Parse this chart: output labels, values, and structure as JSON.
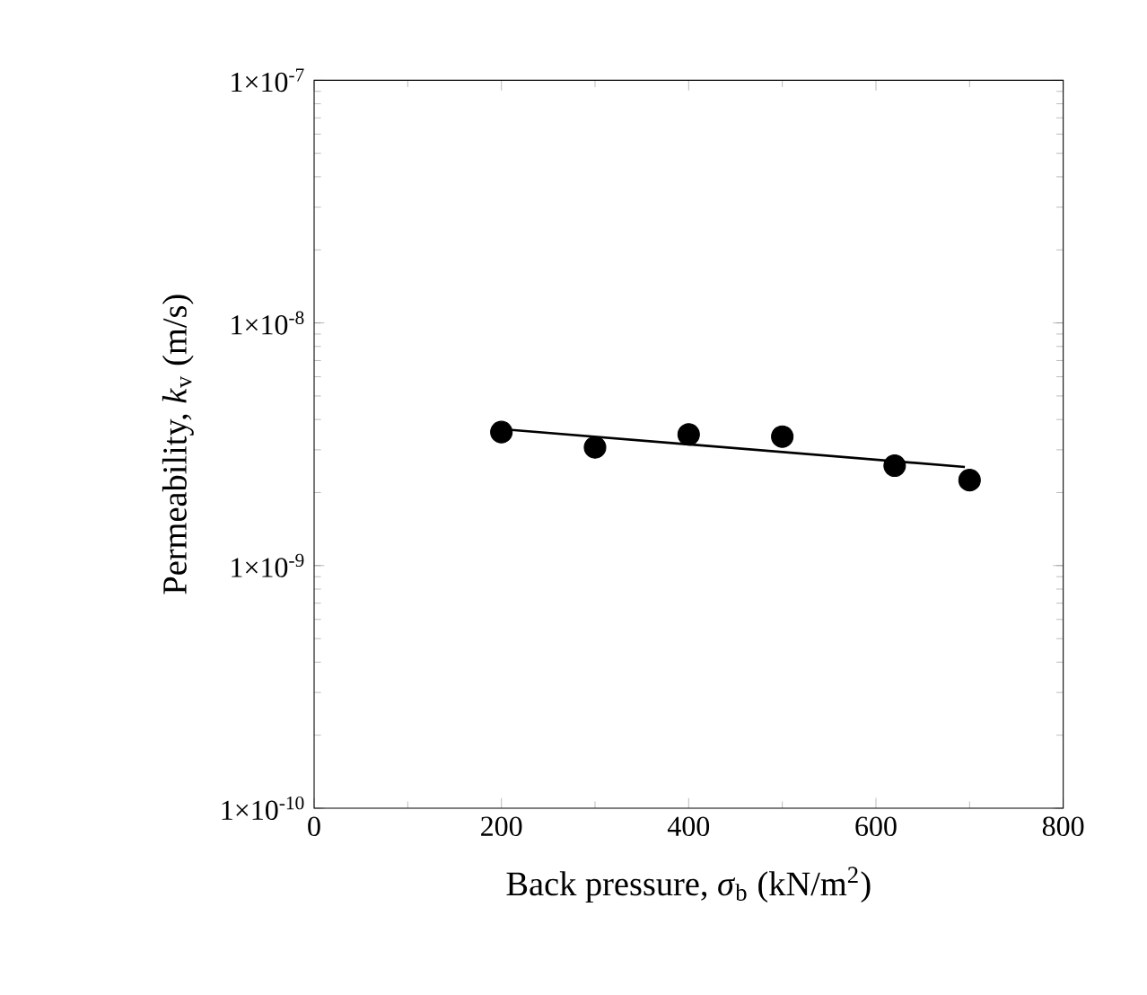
{
  "chart_data": {
    "type": "scatter",
    "xlabel": "Back pressure, *σ*$_{b}$ (kN/m$^{2}$)",
    "ylabel": "Permeability, *k*$_{v}$ (m/s)",
    "log": "y",
    "xlim": [
      0,
      800
    ],
    "xticks": [
      0,
      200,
      400,
      600,
      800
    ],
    "ylim": [
      1e-10,
      1e-07
    ],
    "yticks": [
      {
        "value": 1e-10,
        "label": "1×10$^{-10}$"
      },
      {
        "value": 1e-09,
        "label": "1×10$^{-9}$"
      },
      {
        "value": 1e-08,
        "label": "1×10$^{-8}$"
      },
      {
        "value": 1e-07,
        "label": "1×10$^{-7}$"
      }
    ],
    "grid": false,
    "series": [
      {
        "marker": "circle",
        "color": "#000000",
        "x": [
          200,
          300,
          400,
          500,
          620,
          700
        ],
        "values": [
          3.55e-09,
          3.07e-09,
          3.47e-09,
          3.4e-09,
          2.58e-09,
          2.25e-09
        ]
      },
      {
        "type": "line",
        "marker": "none",
        "line_style": "solid",
        "color": "#000000",
        "x": [
          205,
          695
        ],
        "values": [
          3.64e-09,
          2.55e-09
        ]
      }
    ]
  }
}
